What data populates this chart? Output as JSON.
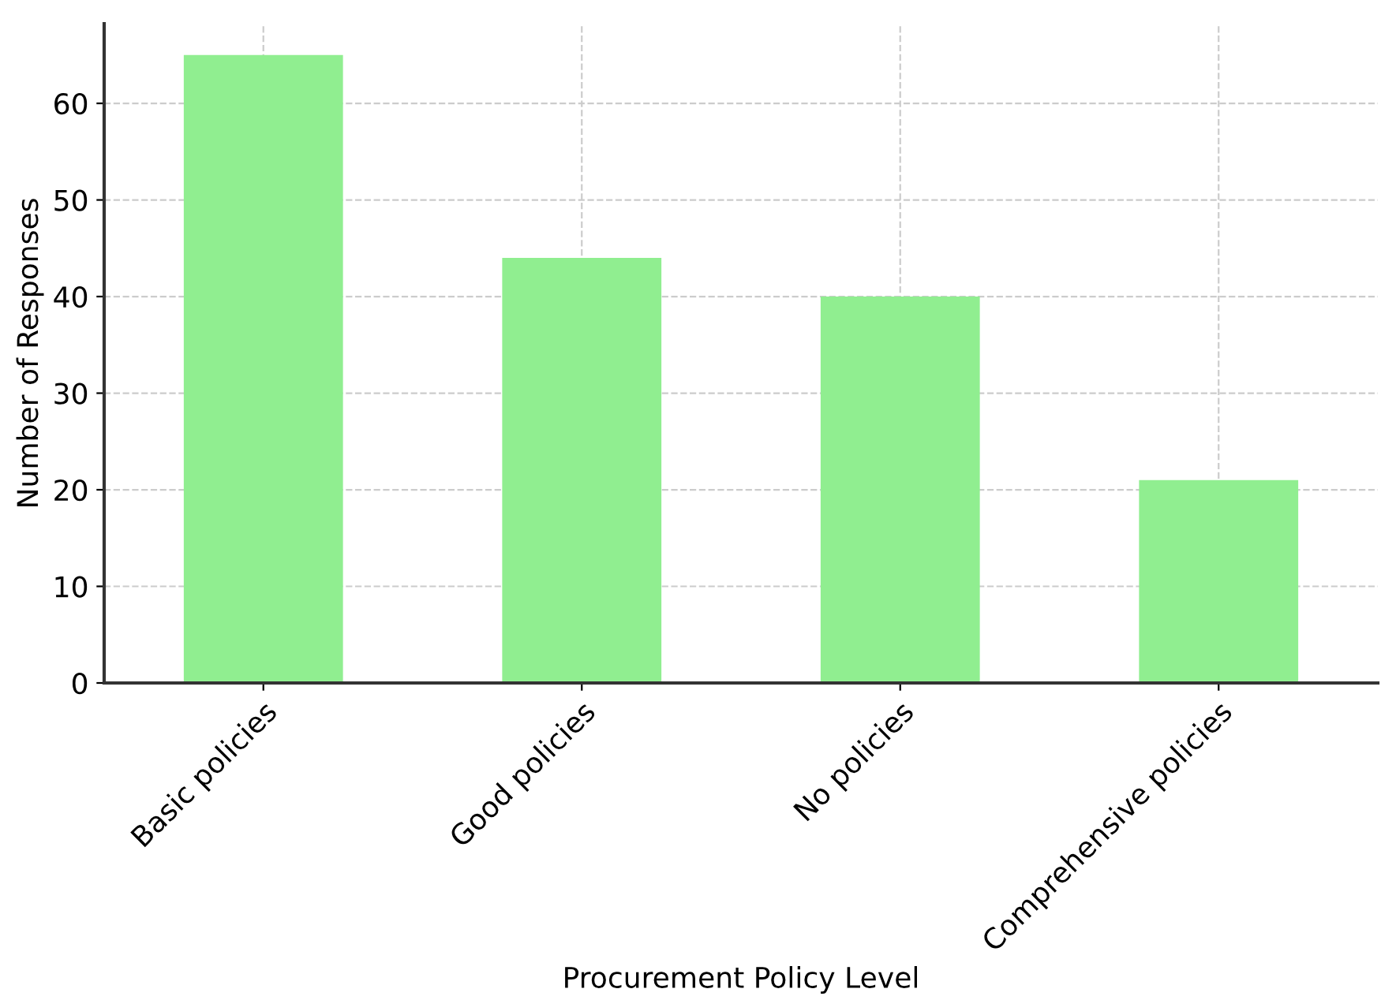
{
  "chart_data": {
    "type": "bar",
    "xlabel": "Procurement Policy Level",
    "ylabel": "Number of Responses",
    "categories": [
      "Basic policies",
      "Good policies",
      "No policies",
      "Comprehensive policies"
    ],
    "values": [
      65,
      44,
      40,
      21
    ],
    "color": "#90ee90",
    "ylim": [
      0,
      68.25
    ],
    "yticks": [
      0,
      10,
      20,
      30,
      40,
      50,
      60
    ],
    "grid": true
  }
}
